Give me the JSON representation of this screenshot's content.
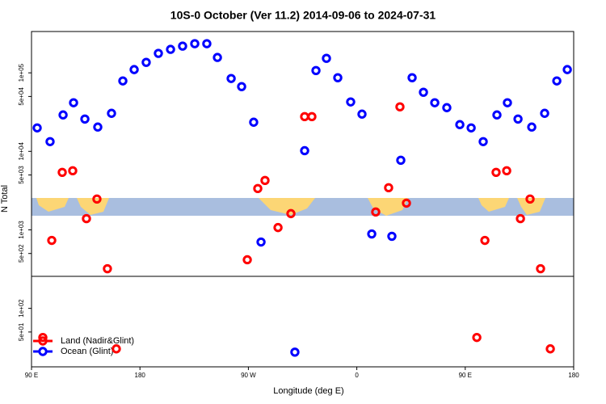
{
  "chart_data": {
    "type": "scatter",
    "title": "10S-0 October (Ver 11.2)   2014-09-06 to 2024-07-31",
    "x_label": "Longitude (deg E)",
    "y_label": "N Total",
    "log_y": true,
    "legend": "lower left",
    "xlim": [
      90,
      540
    ],
    "ylim": [
      18,
      336000
    ],
    "xticks": [
      {
        "value": 90,
        "label": "90 E"
      },
      {
        "value": 180,
        "label": "180"
      },
      {
        "value": 270,
        "label": "90 W"
      },
      {
        "value": 360,
        "label": "0"
      },
      {
        "value": 450,
        "label": "90 E"
      },
      {
        "value": 540,
        "label": "180"
      }
    ],
    "yticks": [
      {
        "value": 50,
        "label": "5e+01"
      },
      {
        "value": 100,
        "label": "1e+02"
      },
      {
        "value": 500,
        "label": "5e+02"
      },
      {
        "value": 1000,
        "label": "1e+03"
      },
      {
        "value": 5000,
        "label": "5e+03"
      },
      {
        "value": 10000,
        "label": "1e+04"
      },
      {
        "value": 50000,
        "label": "5e+04"
      },
      {
        "value": 100000,
        "label": "1e+05"
      }
    ],
    "series": [
      {
        "name": "Land (Nadir&Glint)",
        "color": "#ff0000",
        "x": [
          106.8,
          115.5,
          124.2,
          135.6,
          144.3,
          153.0,
          160.4,
          99.4,
          269.1,
          277.8,
          283.8,
          294.6,
          305.3,
          316.7,
          322.7,
          375.7,
          386.4,
          395.8,
          401.2,
          459.6,
          466.3,
          475.6,
          484.4,
          495.8,
          503.8,
          512.5,
          520.6
        ],
        "values": [
          734,
          5400,
          5660,
          1390,
          2470,
          320,
          30.5,
          42.6,
          416,
          3360,
          4260,
          1070,
          1610,
          27700,
          27700,
          1690,
          3440,
          36900,
          2190,
          42.6,
          734,
          5400,
          5660,
          1390,
          2470,
          320,
          30.5
        ]
      },
      {
        "name": "Ocean (Glint)",
        "color": "#0000ff",
        "x": [
          94.7,
          105.4,
          116.2,
          124.9,
          134.3,
          145.0,
          156.4,
          165.8,
          175.2,
          185.2,
          195.3,
          205.4,
          215.4,
          225.5,
          235.5,
          244.3,
          255.7,
          264.4,
          274.4,
          280.5,
          316.7,
          326.1,
          334.8,
          344.2,
          354.9,
          364.3,
          372.4,
          389.1,
          396.5,
          405.9,
          415.3,
          424.7,
          434.7,
          445.5,
          454.9,
          464.9,
          476.3,
          485.0,
          493.8,
          505.2,
          515.9,
          526.0,
          534.7,
          308.6
        ],
        "values": [
          19900,
          13300,
          29100,
          41600,
          25800,
          20400,
          30500,
          78900,
          110000,
          136000,
          177000,
          199000,
          219000,
          235000,
          235000,
          157000,
          84700,
          66800,
          23500,
          700,
          10200,
          107000,
          153000,
          86700,
          42600,
          29800,
          887,
          828,
          7700,
          86700,
          56600,
          41600,
          36000,
          21900,
          19900,
          13300,
          29100,
          41600,
          25800,
          20400,
          30500,
          78900,
          110000,
          27.7
        ]
      }
    ]
  }
}
